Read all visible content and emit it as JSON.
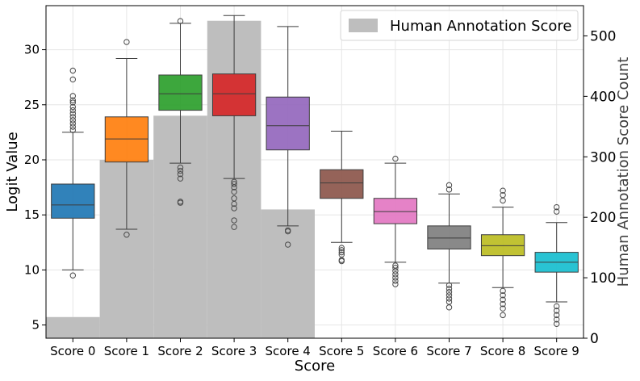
{
  "chart_data": {
    "type": "box",
    "xlabel": "Score",
    "ylabel": "Logit Value",
    "y2label": "Human Annotation Score Count",
    "ylim": [
      3.8,
      34.0
    ],
    "y2lim": [
      0,
      550
    ],
    "yticks": [
      5,
      10,
      15,
      20,
      25,
      30
    ],
    "y2ticks": [
      0,
      100,
      200,
      300,
      400,
      500
    ],
    "grid": true,
    "legend": {
      "position": "top-right",
      "label": "Human Annotation Score",
      "color": "#bebebe"
    },
    "categories": [
      "Score 0",
      "Score 1",
      "Score 2",
      "Score 3",
      "Score 4",
      "Score 5",
      "Score 6",
      "Score 7",
      "Score 8",
      "Score 9"
    ],
    "histogram_counts": [
      35,
      295,
      368,
      525,
      213,
      0,
      0,
      0,
      0,
      0
    ],
    "boxes": [
      {
        "category": "Score 0",
        "color": "#1f77b4",
        "q1": 14.7,
        "median": 15.9,
        "q3": 17.8,
        "whisker_low": 10.0,
        "whisker_high": 22.5,
        "outliers": [
          9.5,
          22.7,
          23.0,
          23.3,
          23.6,
          23.9,
          24.2,
          24.5,
          24.8,
          25.2,
          25.4,
          25.8,
          27.3,
          28.1
        ]
      },
      {
        "category": "Score 1",
        "color": "#ff7f0e",
        "q1": 19.8,
        "median": 21.9,
        "q3": 23.9,
        "whisker_low": 13.7,
        "whisker_high": 29.2,
        "outliers": [
          13.2,
          30.7
        ]
      },
      {
        "category": "Score 2",
        "color": "#2ca02c",
        "q1": 24.5,
        "median": 26.0,
        "q3": 27.7,
        "whisker_low": 19.7,
        "whisker_high": 32.4,
        "outliers": [
          16.1,
          16.2,
          18.3,
          18.7,
          19.0,
          19.3,
          32.6
        ]
      },
      {
        "category": "Score 3",
        "color": "#d62728",
        "q1": 24.0,
        "median": 26.0,
        "q3": 27.8,
        "whisker_low": 18.3,
        "whisker_high": 33.1,
        "outliers": [
          13.9,
          14.5,
          15.6,
          16.0,
          16.5,
          17.1,
          17.5,
          17.8,
          18.0
        ]
      },
      {
        "category": "Score 4",
        "color": "#9467bd",
        "q1": 20.9,
        "median": 23.1,
        "q3": 25.7,
        "whisker_low": 14.0,
        "whisker_high": 32.1,
        "outliers": [
          12.3,
          13.5,
          13.6
        ]
      },
      {
        "category": "Score 5",
        "color": "#8c564b",
        "q1": 16.5,
        "median": 17.9,
        "q3": 19.1,
        "whisker_low": 12.5,
        "whisker_high": 22.6,
        "outliers": [
          10.8,
          10.9,
          11.4,
          11.6,
          11.8,
          12.0
        ]
      },
      {
        "category": "Score 6",
        "color": "#e377c2",
        "q1": 14.2,
        "median": 15.3,
        "q3": 16.5,
        "whisker_low": 10.7,
        "whisker_high": 19.7,
        "outliers": [
          8.7,
          9.0,
          9.3,
          9.6,
          9.9,
          10.2,
          10.4,
          20.1
        ]
      },
      {
        "category": "Score 7",
        "color": "#7f7f7f",
        "q1": 11.9,
        "median": 12.9,
        "q3": 14.0,
        "whisker_low": 8.8,
        "whisker_high": 16.9,
        "outliers": [
          6.6,
          7.1,
          7.4,
          7.7,
          8.0,
          8.3,
          8.6,
          17.3,
          17.7
        ]
      },
      {
        "category": "Score 8",
        "color": "#bcbd22",
        "q1": 11.3,
        "median": 12.2,
        "q3": 13.2,
        "whisker_low": 8.4,
        "whisker_high": 15.7,
        "outliers": [
          5.9,
          6.5,
          6.9,
          7.3,
          7.7,
          8.1,
          16.3,
          16.8,
          17.2
        ]
      },
      {
        "category": "Score 9",
        "color": "#17becf",
        "q1": 9.8,
        "median": 10.7,
        "q3": 11.6,
        "whisker_low": 7.1,
        "whisker_high": 14.3,
        "outliers": [
          5.1,
          5.5,
          5.9,
          6.3,
          6.7,
          15.3,
          15.7
        ]
      }
    ]
  }
}
